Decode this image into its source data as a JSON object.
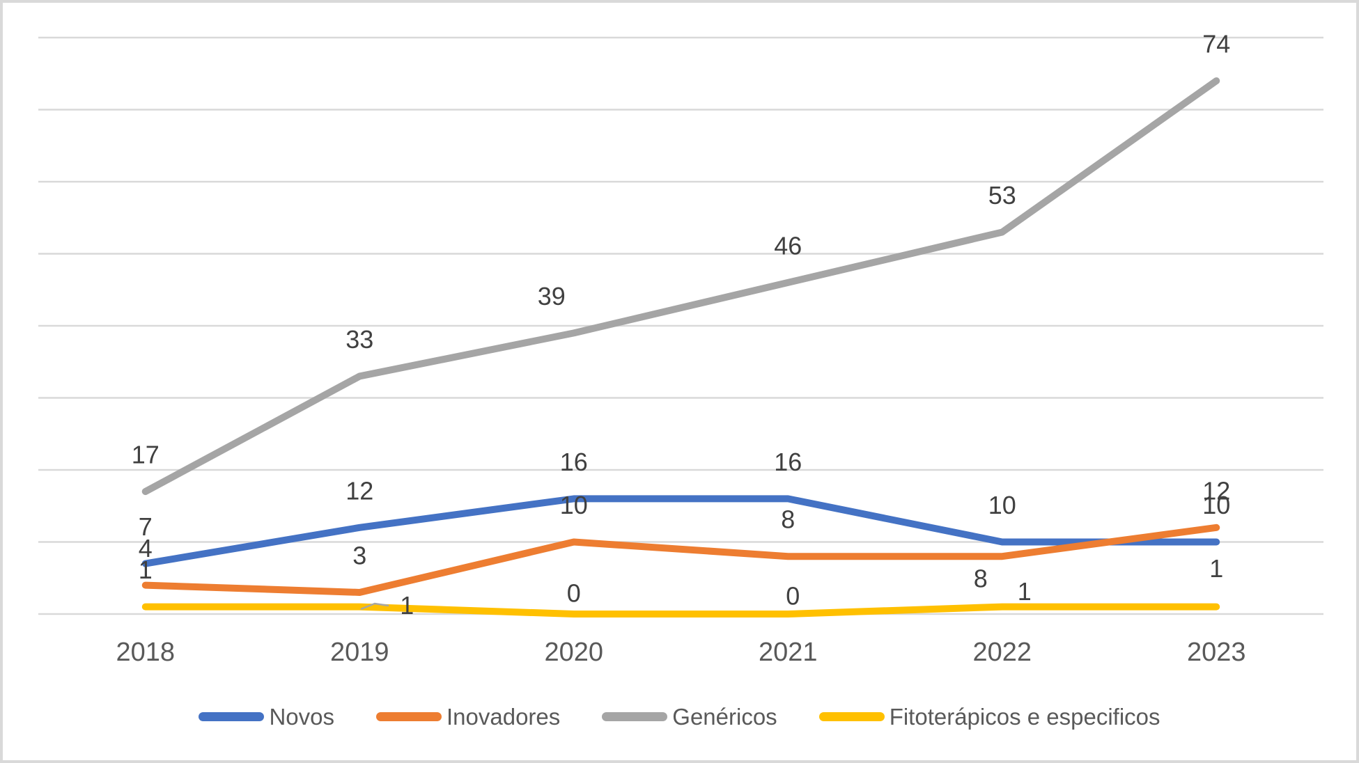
{
  "chart_data": {
    "type": "line",
    "categories": [
      "2018",
      "2019",
      "2020",
      "2021",
      "2022",
      "2023"
    ],
    "series": [
      {
        "name": "Novos",
        "color": "#4472C4",
        "values": [
          7,
          12,
          16,
          16,
          10,
          10
        ]
      },
      {
        "name": "Inovadores",
        "color": "#ED7D31",
        "values": [
          4,
          3,
          10,
          8,
          8,
          12
        ]
      },
      {
        "name": "Genéricos",
        "color": "#A5A5A5",
        "values": [
          17,
          33,
          39,
          46,
          53,
          74
        ]
      },
      {
        "name": "Fitoterápicos e especificos",
        "color": "#FFC000",
        "values": [
          1,
          1,
          0,
          0,
          1,
          1
        ]
      }
    ],
    "title": "",
    "xlabel": "",
    "ylabel": "",
    "ylim": [
      0,
      80
    ],
    "gridline_step": 10,
    "grid": "horizontal",
    "y_axis_labels_visible": false,
    "data_labels": true,
    "legend_position": "bottom"
  },
  "colors": {
    "background": "#FFFFFF",
    "frame_border": "#D9D9D9",
    "gridline": "#D9D9D9",
    "axis_text": "#595959",
    "data_label_text": "#404040",
    "legend_text": "#595959",
    "leader_line": "#A6A6A6"
  }
}
